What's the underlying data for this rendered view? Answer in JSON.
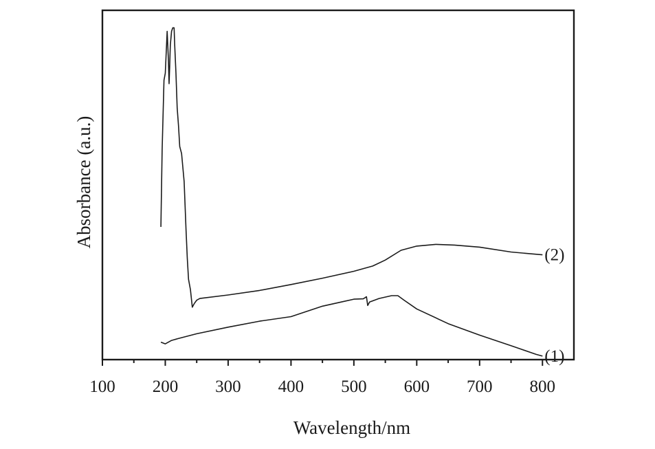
{
  "chart_data": {
    "type": "line",
    "title": "",
    "xlabel": "Wavelength/nm",
    "ylabel": "Absorbance (a.u.)",
    "xlim": [
      100,
      850
    ],
    "ylim": [
      0,
      100
    ],
    "x_ticks": [
      100,
      200,
      300,
      400,
      500,
      600,
      700,
      800
    ],
    "x_tick_labels": [
      "100",
      "200",
      "300",
      "400",
      "500",
      "600",
      "700",
      "800"
    ],
    "y_tick_labels": [],
    "grid": false,
    "legend": "none",
    "series": [
      {
        "name": "(2)",
        "x": [
          193,
          195,
          198,
          200,
          203,
          205,
          206,
          207,
          208,
          210,
          212,
          214,
          215,
          217,
          219,
          221,
          223,
          226,
          230,
          233,
          235,
          237,
          240,
          243,
          246,
          250,
          255,
          300,
          350,
          400,
          450,
          500,
          530,
          550,
          575,
          600,
          630,
          660,
          700,
          750,
          800
        ],
        "y": [
          38,
          60,
          80,
          82,
          94,
          86,
          79,
          84,
          90,
          94,
          95,
          95,
          90,
          82,
          72,
          67,
          61,
          59,
          51,
          37,
          29,
          23,
          20,
          15,
          16,
          17,
          17.5,
          18.5,
          19.8,
          21.5,
          23.3,
          25.3,
          26.8,
          28.5,
          31.3,
          32.5,
          33,
          32.8,
          32.2,
          30.8,
          30
        ]
      },
      {
        "name": "(1)",
        "x": [
          193,
          200,
          210,
          220,
          250,
          300,
          350,
          400,
          450,
          480,
          500,
          515,
          520,
          522,
          525,
          540,
          560,
          570,
          580,
          600,
          650,
          700,
          750,
          790,
          800
        ],
        "y": [
          5,
          4.5,
          5.5,
          6,
          7.4,
          9.3,
          11,
          12.3,
          15.3,
          16.5,
          17.3,
          17.4,
          18,
          15.5,
          16.5,
          17.5,
          18.3,
          18.3,
          17,
          14.5,
          10.3,
          7,
          4,
          1.5,
          1
        ]
      }
    ]
  }
}
